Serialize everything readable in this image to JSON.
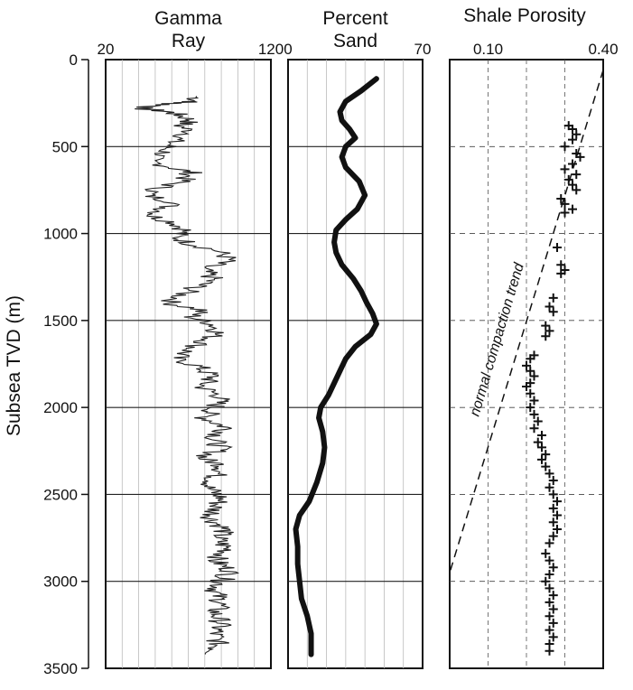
{
  "chart_data": {
    "type": "line",
    "y_axis": {
      "label": "Subsea TVD (m)",
      "range": [
        0,
        3500
      ],
      "ticks": [
        0,
        500,
        1000,
        1500,
        2000,
        2500,
        3000,
        3500
      ],
      "inverted": true
    },
    "panels": [
      {
        "id": "gamma",
        "title_lines": [
          "Gamma",
          "Ray"
        ],
        "type": "line",
        "xlim": [
          20,
          120
        ],
        "x_ticks": [
          20,
          120
        ],
        "grid_x": [
          30,
          40,
          50,
          60,
          70,
          80,
          90,
          100,
          110
        ],
        "grid_style": "vertical gridlines every 10 units; horizontal lines at 500 m intervals",
        "series": [
          {
            "style": "noisy log trace",
            "points": [
              [
                75,
                210
              ],
              [
                74,
                240
              ],
              [
                62,
                250
              ],
              [
                55,
                260
              ],
              [
                40,
                280
              ],
              [
                58,
                300
              ],
              [
                65,
                320
              ],
              [
                72,
                350
              ],
              [
                65,
                380
              ],
              [
                72,
                420
              ],
              [
                62,
                460
              ],
              [
                58,
                500
              ],
              [
                55,
                540
              ],
              [
                45,
                580
              ],
              [
                60,
                620
              ],
              [
                72,
                650
              ],
              [
                66,
                700
              ],
              [
                52,
                740
              ],
              [
                45,
                780
              ],
              [
                62,
                820
              ],
              [
                55,
                860
              ],
              [
                48,
                900
              ],
              [
                62,
                940
              ],
              [
                68,
                980
              ],
              [
                62,
                1020
              ],
              [
                72,
                1060
              ],
              [
                88,
                1100
              ],
              [
                95,
                1150
              ],
              [
                78,
                1200
              ],
              [
                85,
                1260
              ],
              [
                72,
                1320
              ],
              [
                65,
                1360
              ],
              [
                58,
                1400
              ],
              [
                78,
                1440
              ],
              [
                72,
                1480
              ],
              [
                85,
                1520
              ],
              [
                88,
                1570
              ],
              [
                80,
                1620
              ],
              [
                72,
                1660
              ],
              [
                62,
                1720
              ],
              [
                75,
                1760
              ],
              [
                85,
                1820
              ],
              [
                78,
                1880
              ],
              [
                90,
                1940
              ],
              [
                86,
                2000
              ],
              [
                80,
                2060
              ],
              [
                94,
                2120
              ],
              [
                85,
                2180
              ],
              [
                90,
                2240
              ],
              [
                78,
                2290
              ],
              [
                92,
                2340
              ],
              [
                86,
                2400
              ],
              [
                82,
                2460
              ],
              [
                90,
                2520
              ],
              [
                86,
                2580
              ],
              [
                84,
                2640
              ],
              [
                92,
                2700
              ],
              [
                88,
                2760
              ],
              [
                94,
                2820
              ],
              [
                86,
                2880
              ],
              [
                96,
                2940
              ],
              [
                90,
                3000
              ],
              [
                86,
                3060
              ],
              [
                90,
                3120
              ],
              [
                86,
                3180
              ],
              [
                90,
                3240
              ],
              [
                86,
                3300
              ],
              [
                88,
                3360
              ],
              [
                85,
                3420
              ]
            ]
          }
        ]
      },
      {
        "id": "sand",
        "title_lines": [
          "Percent",
          "Sand"
        ],
        "type": "line",
        "xlim": [
          0,
          70
        ],
        "x_ticks": [
          0,
          70
        ],
        "grid_x": [
          10,
          20,
          30,
          40,
          50,
          60
        ],
        "grid_style": "vertical gridlines every 10 units; horizontal lines at 500 m intervals",
        "series": [
          {
            "style": "thick smooth curve",
            "points": [
              [
                46,
                110
              ],
              [
                38,
                180
              ],
              [
                30,
                240
              ],
              [
                27,
                300
              ],
              [
                28,
                350
              ],
              [
                32,
                400
              ],
              [
                35,
                450
              ],
              [
                30,
                500
              ],
              [
                28,
                560
              ],
              [
                30,
                620
              ],
              [
                37,
                700
              ],
              [
                40,
                780
              ],
              [
                36,
                860
              ],
              [
                30,
                920
              ],
              [
                25,
                980
              ],
              [
                24,
                1050
              ],
              [
                25,
                1110
              ],
              [
                28,
                1180
              ],
              [
                34,
                1260
              ],
              [
                38,
                1330
              ],
              [
                41,
                1400
              ],
              [
                44,
                1460
              ],
              [
                46,
                1520
              ],
              [
                43,
                1580
              ],
              [
                35,
                1650
              ],
              [
                30,
                1720
              ],
              [
                27,
                1790
              ],
              [
                24,
                1860
              ],
              [
                21,
                1930
              ],
              [
                17,
                2000
              ],
              [
                16,
                2060
              ],
              [
                18,
                2140
              ],
              [
                19,
                2230
              ],
              [
                18,
                2320
              ],
              [
                15,
                2430
              ],
              [
                11,
                2540
              ],
              [
                6,
                2620
              ],
              [
                4,
                2700
              ],
              [
                5,
                2800
              ],
              [
                5,
                2900
              ],
              [
                6,
                3000
              ],
              [
                7,
                3100
              ],
              [
                10,
                3200
              ],
              [
                12,
                3300
              ],
              [
                12,
                3420
              ]
            ]
          }
        ]
      },
      {
        "id": "porosity",
        "title_lines": [
          "Shale Porosity"
        ],
        "type": "scatter",
        "xlim": [
          0.0,
          0.4
        ],
        "x_ticks": [
          0.1,
          0.4
        ],
        "x_tick_labels": [
          "0.10",
          "0.40"
        ],
        "grid_x": [
          0.1,
          0.2,
          0.3
        ],
        "grid_style": "dashed gridlines",
        "series": [
          {
            "name": "normal compaction trend",
            "style": "dashed line",
            "points": [
              [
                0.4,
                60
              ],
              [
                0.0,
                2950
              ]
            ]
          }
        ],
        "annotations": [
          {
            "text": "normal compaction trend",
            "x": 0.08,
            "y": 1900
          }
        ],
        "scatter_points": [
          [
            0.31,
            380
          ],
          [
            0.32,
            400
          ],
          [
            0.33,
            430
          ],
          [
            0.32,
            460
          ],
          [
            0.3,
            500
          ],
          [
            0.33,
            540
          ],
          [
            0.34,
            560
          ],
          [
            0.32,
            600
          ],
          [
            0.3,
            630
          ],
          [
            0.33,
            660
          ],
          [
            0.31,
            690
          ],
          [
            0.32,
            720
          ],
          [
            0.33,
            750
          ],
          [
            0.29,
            800
          ],
          [
            0.3,
            830
          ],
          [
            0.32,
            860
          ],
          [
            0.3,
            880
          ],
          [
            0.28,
            1080
          ],
          [
            0.29,
            1180
          ],
          [
            0.3,
            1210
          ],
          [
            0.29,
            1230
          ],
          [
            0.27,
            1370
          ],
          [
            0.26,
            1420
          ],
          [
            0.27,
            1450
          ],
          [
            0.25,
            1530
          ],
          [
            0.26,
            1560
          ],
          [
            0.25,
            1590
          ],
          [
            0.22,
            1700
          ],
          [
            0.21,
            1720
          ],
          [
            0.2,
            1760
          ],
          [
            0.21,
            1790
          ],
          [
            0.22,
            1820
          ],
          [
            0.21,
            1860
          ],
          [
            0.2,
            1880
          ],
          [
            0.21,
            1920
          ],
          [
            0.22,
            1960
          ],
          [
            0.21,
            2000
          ],
          [
            0.22,
            2040
          ],
          [
            0.23,
            2080
          ],
          [
            0.22,
            2120
          ],
          [
            0.24,
            2160
          ],
          [
            0.23,
            2200
          ],
          [
            0.24,
            2230
          ],
          [
            0.25,
            2270
          ],
          [
            0.24,
            2300
          ],
          [
            0.25,
            2340
          ],
          [
            0.26,
            2380
          ],
          [
            0.27,
            2420
          ],
          [
            0.26,
            2460
          ],
          [
            0.27,
            2500
          ],
          [
            0.28,
            2540
          ],
          [
            0.27,
            2580
          ],
          [
            0.28,
            2620
          ],
          [
            0.27,
            2660
          ],
          [
            0.28,
            2700
          ],
          [
            0.27,
            2740
          ],
          [
            0.26,
            2780
          ],
          [
            0.25,
            2840
          ],
          [
            0.26,
            2880
          ],
          [
            0.27,
            2920
          ],
          [
            0.26,
            2960
          ],
          [
            0.25,
            3000
          ],
          [
            0.26,
            3040
          ],
          [
            0.27,
            3080
          ],
          [
            0.26,
            3120
          ],
          [
            0.27,
            3160
          ],
          [
            0.26,
            3200
          ],
          [
            0.27,
            3240
          ],
          [
            0.26,
            3280
          ],
          [
            0.27,
            3320
          ],
          [
            0.26,
            3360
          ],
          [
            0.26,
            3400
          ]
        ]
      }
    ]
  }
}
